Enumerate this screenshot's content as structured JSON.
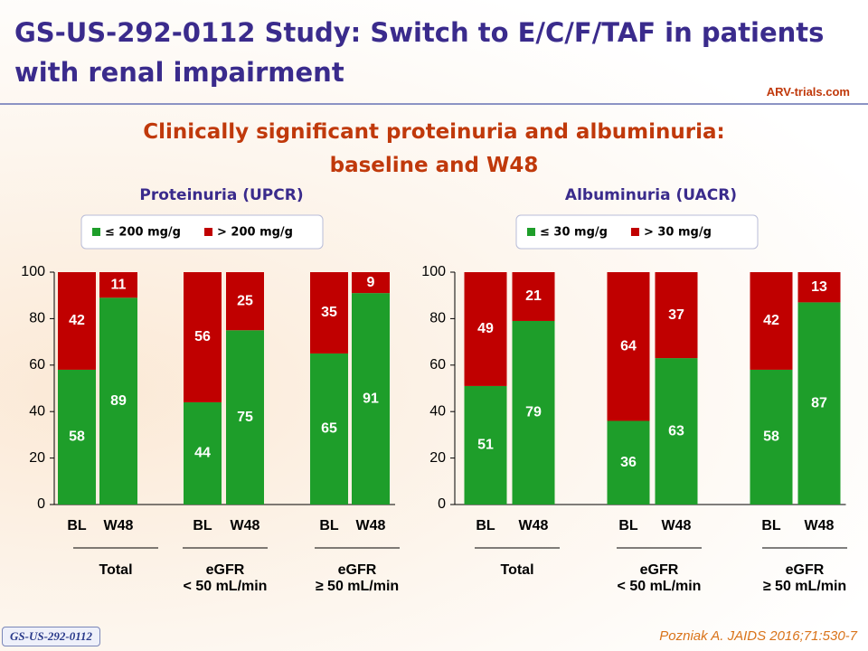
{
  "title": "GS-US-292-0112 Study: Switch to E/C/F/TAF in patients with renal impairment",
  "logo": "ARV-trials.com",
  "subtitle": "Clinically significant proteinuria and albuminuria:\nbaseline and W48",
  "footer_left": "GS-US-292-0112",
  "citation": "Pozniak A. JAIDS 2016;71:530-7",
  "chart_data": [
    {
      "type": "stacked_bar",
      "title": "Proteinuria (UPCR)",
      "categories": [
        "BL",
        "W48",
        "BL",
        "W48",
        "BL",
        "W48"
      ],
      "groups": [
        "Total",
        "eGFR\n< 50 mL/min",
        "eGFR\n≥ 50 mL/min"
      ],
      "series": [
        {
          "name": "≤ 200 mg/g",
          "color": "#1e9e2a",
          "values": [
            58,
            89,
            44,
            75,
            65,
            91
          ]
        },
        {
          "name": "> 200 mg/g",
          "color": "#c00000",
          "values": [
            42,
            11,
            56,
            25,
            35,
            9
          ]
        }
      ],
      "ylim": [
        0,
        100
      ],
      "yticks": [
        0,
        20,
        40,
        60,
        80,
        100
      ]
    },
    {
      "type": "stacked_bar",
      "title": "Albuminuria (UACR)",
      "categories": [
        "BL",
        "W48",
        "BL",
        "W48",
        "BL",
        "W48"
      ],
      "groups": [
        "Total",
        "eGFR\n< 50 mL/min",
        "eGFR\n≥ 50 mL/min"
      ],
      "series": [
        {
          "name": "≤ 30 mg/g",
          "color": "#1e9e2a",
          "values": [
            51,
            79,
            36,
            63,
            58,
            87
          ]
        },
        {
          "name": "> 30 mg/g",
          "color": "#c00000",
          "values": [
            49,
            21,
            64,
            37,
            42,
            13
          ]
        }
      ],
      "ylim": [
        0,
        100
      ],
      "yticks": [
        0,
        20,
        40,
        60,
        80,
        100
      ]
    }
  ]
}
